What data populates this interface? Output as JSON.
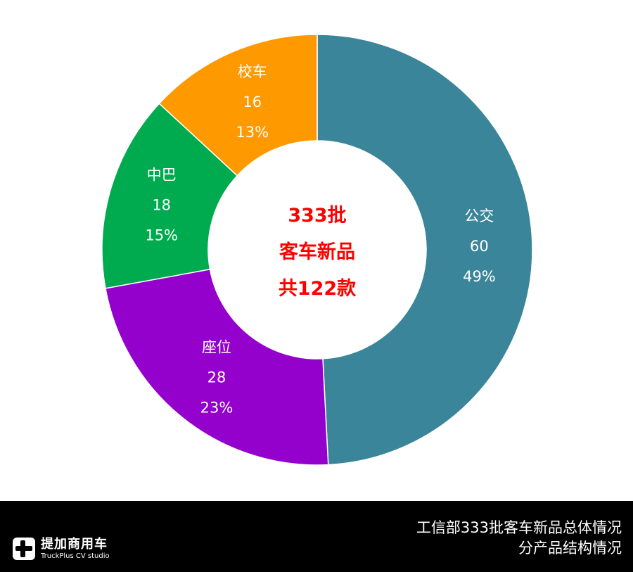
{
  "chart_data": {
    "type": "pie",
    "variant": "donut",
    "title": "工信部333批客车新品总体情况 分产品结构情况",
    "center_text": [
      "333批",
      "客车新品",
      "共122款"
    ],
    "total": 122,
    "categories": [
      "公交",
      "座位",
      "中巴",
      "校车"
    ],
    "values": [
      60,
      28,
      18,
      16
    ],
    "percentages": [
      "49%",
      "23%",
      "15%",
      "13%"
    ],
    "colors": [
      "#3A8599",
      "#9400CC",
      "#00AA4F",
      "#FF9900"
    ],
    "start_angle_deg": 0,
    "direction": "clockwise",
    "legend": "none (data labels inside slices)"
  },
  "footer": {
    "logo_cn": "提加商用车",
    "logo_en": "TruckPlus CV studio",
    "caption_line1": "工信部333批客车新品总体情况",
    "caption_line2": "分产品结构情况"
  }
}
